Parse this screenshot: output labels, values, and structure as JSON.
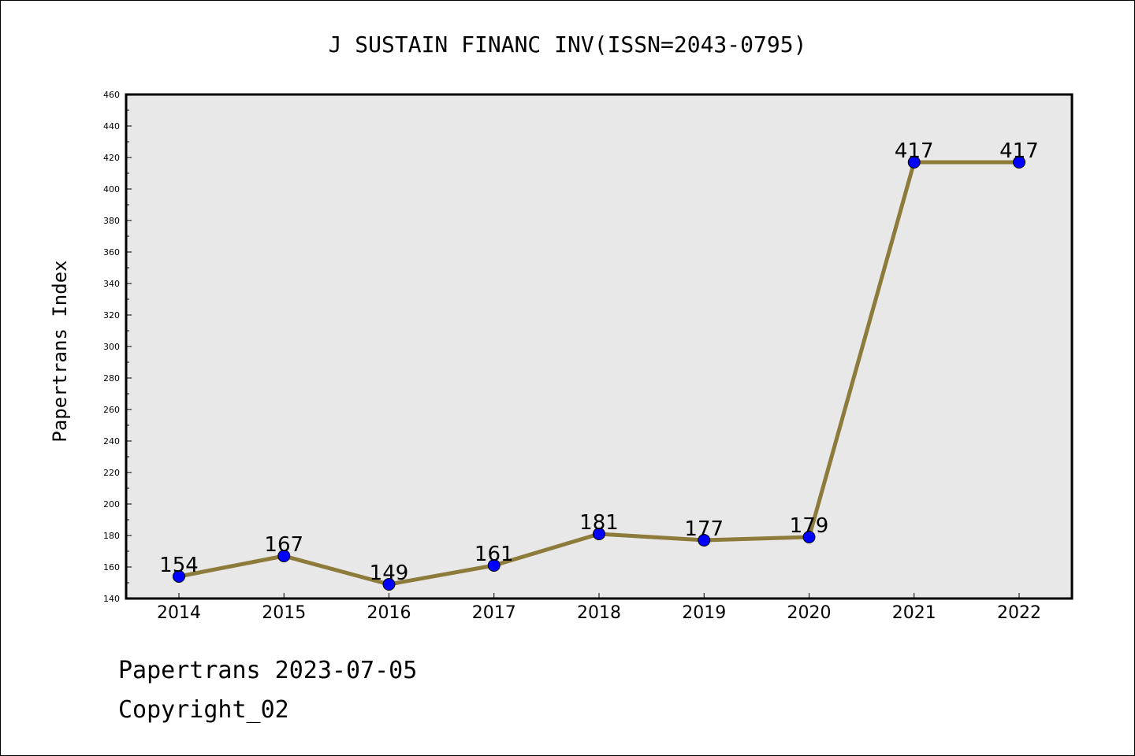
{
  "chart_data": {
    "type": "line",
    "title": "J SUSTAIN FINANC INV(ISSN=2043-0795)",
    "xlabel": "",
    "ylabel": "Papertrans Index",
    "categories": [
      "2014",
      "2015",
      "2016",
      "2017",
      "2018",
      "2019",
      "2020",
      "2021",
      "2022"
    ],
    "series": [
      {
        "values": [
          154,
          167,
          149,
          161,
          181,
          177,
          179,
          417,
          417
        ]
      }
    ],
    "ylim": [
      140,
      460
    ],
    "yticks": [
      140,
      160,
      180,
      200,
      220,
      240,
      260,
      280,
      300,
      320,
      340,
      360,
      380,
      400,
      420,
      440,
      460
    ],
    "grid": false,
    "line_color": "#8c7b3a",
    "marker_color": "#0000ff",
    "plot_background": "#e8e8e8"
  },
  "footer": {
    "date_line": "Papertrans 2023-07-05",
    "copyright": "Copyright_02"
  }
}
